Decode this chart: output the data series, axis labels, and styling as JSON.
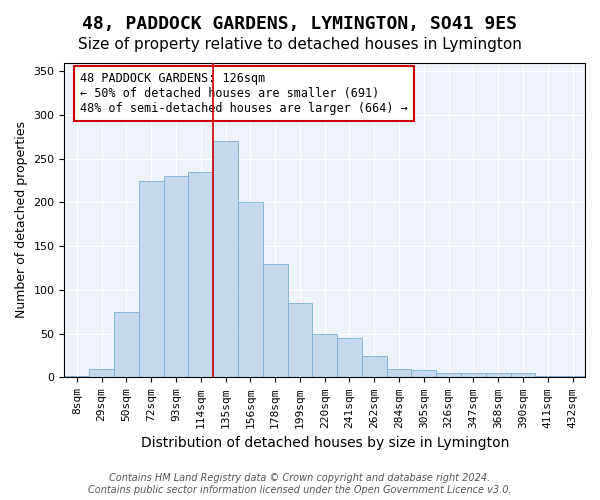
{
  "title": "48, PADDOCK GARDENS, LYMINGTON, SO41 9ES",
  "subtitle": "Size of property relative to detached houses in Lymington",
  "xlabel": "Distribution of detached houses by size in Lymington",
  "ylabel": "Number of detached properties",
  "footer_line1": "Contains HM Land Registry data © Crown copyright and database right 2024.",
  "footer_line2": "Contains public sector information licensed under the Open Government Licence v3.0.",
  "bin_labels": [
    "8sqm",
    "29sqm",
    "50sqm",
    "72sqm",
    "93sqm",
    "114sqm",
    "135sqm",
    "156sqm",
    "178sqm",
    "199sqm",
    "220sqm",
    "241sqm",
    "262sqm",
    "284sqm",
    "305sqm",
    "326sqm",
    "347sqm",
    "368sqm",
    "390sqm",
    "411sqm",
    "432sqm"
  ],
  "bar_values": [
    2,
    10,
    75,
    225,
    230,
    235,
    270,
    200,
    130,
    85,
    50,
    45,
    25,
    10,
    8,
    5,
    5,
    5,
    5,
    2,
    2
  ],
  "bar_color": "#c5d8ed",
  "bar_edge_color": "#7aafd4",
  "background_color": "#eef3fa",
  "grid_color": "#ffffff",
  "vline_x": 5.5,
  "vline_color": "#cc0000",
  "annotation_text": "48 PADDOCK GARDENS: 126sqm\n← 50% of detached houses are smaller (691)\n48% of semi-detached houses are larger (664) →",
  "annotation_box_color": "#cc0000",
  "ylim": [
    0,
    360
  ],
  "yticks": [
    0,
    50,
    100,
    150,
    200,
    250,
    300,
    350
  ],
  "title_fontsize": 13,
  "subtitle_fontsize": 11,
  "xlabel_fontsize": 10,
  "ylabel_fontsize": 9,
  "tick_fontsize": 8,
  "annotation_fontsize": 8.5,
  "footer_fontsize": 7
}
